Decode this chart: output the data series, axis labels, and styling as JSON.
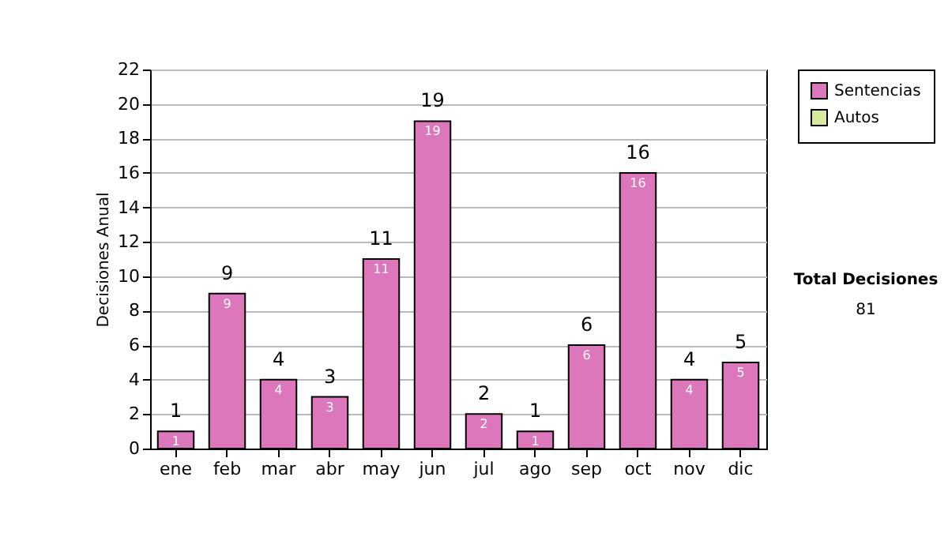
{
  "chart_data": {
    "type": "bar",
    "ylabel": "Decisiones Anual",
    "categories": [
      "ene",
      "feb",
      "mar",
      "abr",
      "may",
      "jun",
      "jul",
      "ago",
      "sep",
      "oct",
      "nov",
      "dic"
    ],
    "series": [
      {
        "name": "Sentencias",
        "color": "#dd77bb",
        "values": [
          1,
          9,
          4,
          3,
          11,
          19,
          2,
          1,
          6,
          16,
          4,
          5
        ]
      },
      {
        "name": "Autos",
        "color": "#d6eba0",
        "values": [
          null,
          null,
          null,
          null,
          null,
          null,
          null,
          null,
          null,
          null,
          null,
          null
        ]
      }
    ],
    "ylim": [
      0,
      22
    ],
    "yticks": [
      0,
      2,
      4,
      6,
      8,
      10,
      12,
      14,
      16,
      18,
      20,
      22
    ],
    "grid": "y",
    "legend": "right",
    "data_labels": true,
    "annotations": [
      "Total Decisiones",
      "81",
      {
        "text": "1",
        "x": "ene",
        "y": 1
      },
      {
        "text": "9",
        "x": "feb",
        "y": 9
      },
      {
        "text": "4",
        "x": "mar",
        "y": 4
      },
      {
        "text": "3",
        "x": "abr",
        "y": 3
      },
      {
        "text": "11",
        "x": "may",
        "y": 11
      },
      {
        "text": "19",
        "x": "jun",
        "y": 19
      },
      {
        "text": "2",
        "x": "jul",
        "y": 2
      },
      {
        "text": "1",
        "x": "ago",
        "y": 1
      },
      {
        "text": "6",
        "x": "sep",
        "y": 6
      },
      {
        "text": "16",
        "x": "oct",
        "y": 16
      },
      {
        "text": "4",
        "x": "nov",
        "y": 4
      },
      {
        "text": "5",
        "x": "dic",
        "y": 5
      }
    ]
  }
}
